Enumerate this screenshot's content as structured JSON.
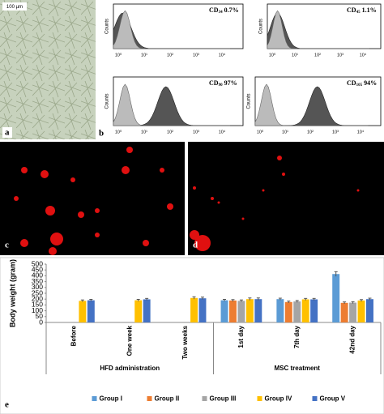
{
  "panel_a": {
    "scale_bar": "100 µm",
    "label": "a"
  },
  "panel_b": {
    "label": "b",
    "y_axis_label": "Counts",
    "x_tick_labels": [
      "10⁰",
      "10¹",
      "10²",
      "10³",
      "10⁴"
    ],
    "histograms": [
      {
        "marker": "CD",
        "subscript": "34",
        "percent": "0.7%"
      },
      {
        "marker": "CD",
        "subscript": "45",
        "percent": "1.1%"
      },
      {
        "marker": "CD",
        "subscript": "90",
        "percent": "97%"
      },
      {
        "marker": "CD",
        "subscript": "105",
        "percent": "94%"
      }
    ]
  },
  "panel_c": {
    "label": "c"
  },
  "panel_d": {
    "label": "d"
  },
  "chart_data": {
    "type": "bar",
    "panel_label": "e",
    "y_label": "Body weight (gram)",
    "categories": [
      "Before",
      "One week",
      "Two weeks",
      "1st day",
      "7th day",
      "42nd day"
    ],
    "category_groups": [
      "HFD administration",
      "MSC treatment"
    ],
    "ylim": [
      0,
      500
    ],
    "yticks": [
      0,
      50,
      100,
      150,
      200,
      250,
      300,
      350,
      400,
      450,
      500
    ],
    "grid": false,
    "legend": "bottom",
    "series": [
      {
        "name": "Group I",
        "color": "#5b9bd5",
        "values": [
          null,
          null,
          null,
          190,
          200,
          415
        ],
        "errors": [
          null,
          null,
          null,
          8,
          8,
          20
        ]
      },
      {
        "name": "Group II",
        "color": "#ed7d31",
        "values": [
          null,
          null,
          null,
          188,
          175,
          168
        ],
        "errors": [
          null,
          null,
          null,
          8,
          8,
          8
        ]
      },
      {
        "name": "Group III",
        "color": "#a5a5a5",
        "values": [
          null,
          null,
          null,
          185,
          180,
          170
        ],
        "errors": [
          null,
          null,
          null,
          8,
          8,
          8
        ]
      },
      {
        "name": "Group IV",
        "color": "#ffc000",
        "values": [
          185,
          190,
          210,
          200,
          198,
          188
        ],
        "errors": [
          8,
          8,
          10,
          10,
          8,
          8
        ]
      },
      {
        "name": "Group V",
        "color": "#4472c4",
        "values": [
          190,
          198,
          207,
          200,
          198,
          200
        ],
        "errors": [
          8,
          8,
          10,
          10,
          8,
          8
        ]
      }
    ]
  }
}
